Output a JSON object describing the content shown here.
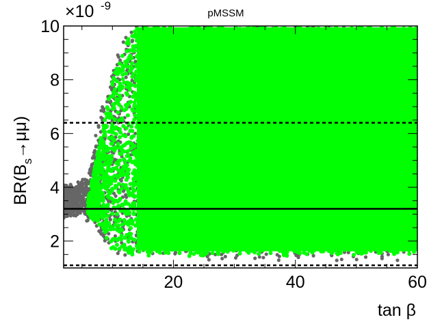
{
  "chart_data": {
    "type": "scatter",
    "title": "pMSSM",
    "xlabel": "tan β",
    "ylabel": {
      "prefix": "BR(B",
      "subscript": "s",
      "arrow": "→",
      "suffix": "μμ)"
    },
    "y_multiplier": {
      "base": "×10",
      "exponent": "-9"
    },
    "xlim": [
      2,
      60
    ],
    "ylim": [
      1.0,
      10.0
    ],
    "x_ticks": [
      20,
      40,
      60
    ],
    "y_ticks": [
      2,
      4,
      6,
      8,
      10
    ],
    "grid": false,
    "series": [
      {
        "role": "all_points",
        "color": "#666666",
        "description_of_region": {
          "x_range": [
            2,
            60
          ],
          "lower_envelope": [
            [
              2,
              3.0
            ],
            [
              5,
              3.1
            ],
            [
              7,
              2.6
            ],
            [
              8,
              2.3
            ],
            [
              9,
              1.9
            ],
            [
              10,
              1.6
            ],
            [
              15,
              1.45
            ],
            [
              30,
              1.4
            ],
            [
              45,
              1.3
            ],
            [
              60,
              1.35
            ]
          ],
          "upper_envelope": [
            [
              2,
              4.0
            ],
            [
              4,
              4.0
            ],
            [
              6,
              4.3
            ],
            [
              7,
              5.5
            ],
            [
              8,
              6.7
            ],
            [
              9,
              7.3
            ],
            [
              10,
              8.2
            ],
            [
              11,
              9.3
            ],
            [
              12,
              10.0
            ],
            [
              60,
              10.0
            ]
          ]
        }
      },
      {
        "role": "accepted_points",
        "color": "#00ff00",
        "description_of_region": {
          "x_range": [
            6,
            60
          ],
          "lower_envelope": [
            [
              6,
              3.0
            ],
            [
              8,
              2.6
            ],
            [
              10,
              1.7
            ],
            [
              12,
              1.55
            ],
            [
              20,
              1.5
            ],
            [
              60,
              1.5
            ]
          ],
          "upper_envelope": [
            [
              6,
              3.5
            ],
            [
              8,
              5.8
            ],
            [
              10,
              8.0
            ],
            [
              12,
              9.3
            ],
            [
              14,
              10.0
            ],
            [
              60,
              10.0
            ]
          ]
        }
      }
    ],
    "reference_lines": [
      {
        "name": "central",
        "y": 3.2,
        "style": "solid",
        "color": "#000000"
      },
      {
        "name": "upper_bound",
        "y": 6.4,
        "style": "dashed",
        "color": "#000000"
      },
      {
        "name": "lower_bound",
        "y": 1.1,
        "style": "dashed",
        "color": "#000000"
      }
    ]
  }
}
